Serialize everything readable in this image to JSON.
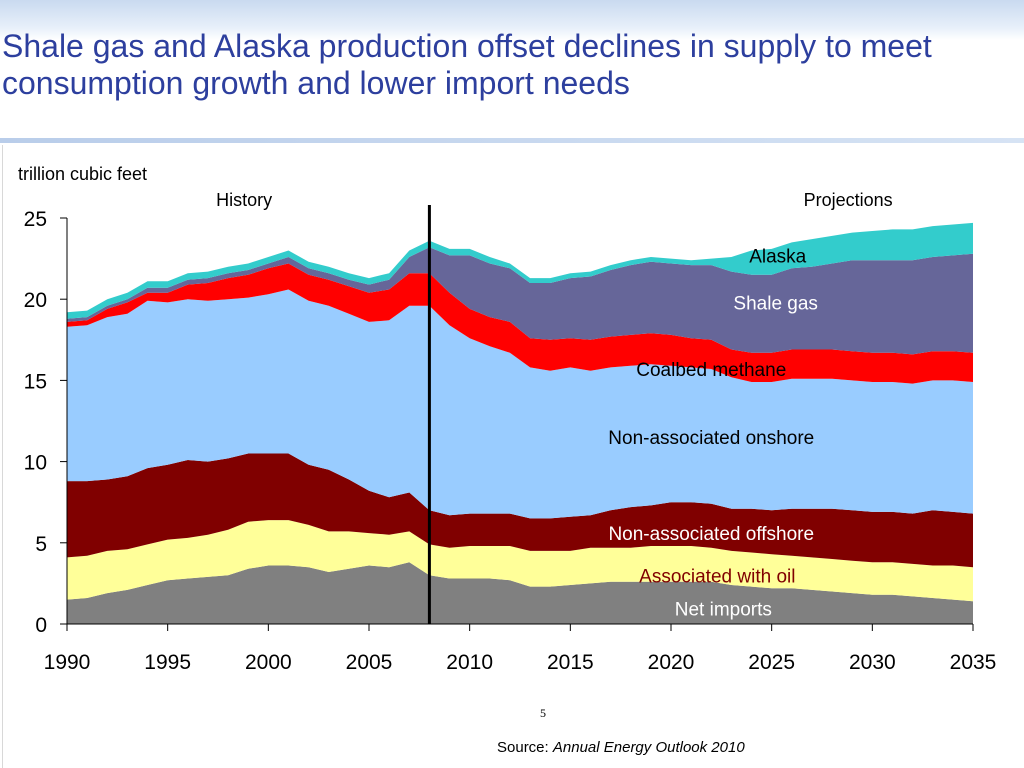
{
  "slide": {
    "title": "Shale gas and Alaska production offset declines in supply to meet consumption growth and lower import needs",
    "page_number": "5",
    "source_prefix": "Source:",
    "source_title": "Annual Energy Outlook 2010"
  },
  "colors": {
    "title": "#2d3f9e",
    "net_imports": "#808080",
    "associated": "#ffff99",
    "offshore": "#800000",
    "onshore": "#99ccff",
    "coalbed": "#ff0000",
    "shale": "#666699",
    "alaska": "#33cccc"
  },
  "chart_data": {
    "type": "area",
    "stacked": true,
    "ylabel": "trillion cubic feet",
    "ylim": [
      0,
      25
    ],
    "yticks": [
      0,
      5,
      10,
      15,
      20,
      25
    ],
    "xlim": [
      1990,
      2035
    ],
    "xticks": [
      1990,
      1995,
      2000,
      2005,
      2010,
      2015,
      2020,
      2025,
      2030,
      2035
    ],
    "divider_year": 2008,
    "period_labels": {
      "history": "History",
      "projections": "Projections"
    },
    "x": [
      1990,
      1991,
      1992,
      1993,
      1994,
      1995,
      1996,
      1997,
      1998,
      1999,
      2000,
      2001,
      2002,
      2003,
      2004,
      2005,
      2006,
      2007,
      2008,
      2009,
      2010,
      2011,
      2012,
      2013,
      2014,
      2015,
      2016,
      2017,
      2018,
      2019,
      2020,
      2021,
      2022,
      2023,
      2024,
      2025,
      2026,
      2027,
      2028,
      2029,
      2030,
      2031,
      2032,
      2033,
      2034,
      2035
    ],
    "series": [
      {
        "name": "Net imports",
        "color_key": "net_imports",
        "label_color": "#ffffff",
        "values": [
          1.5,
          1.6,
          1.9,
          2.1,
          2.4,
          2.7,
          2.8,
          2.9,
          3.0,
          3.4,
          3.6,
          3.6,
          3.5,
          3.2,
          3.4,
          3.6,
          3.5,
          3.8,
          3.0,
          2.8,
          2.8,
          2.8,
          2.7,
          2.3,
          2.3,
          2.4,
          2.5,
          2.6,
          2.6,
          2.6,
          2.6,
          2.6,
          2.6,
          2.4,
          2.3,
          2.2,
          2.2,
          2.1,
          2.0,
          1.9,
          1.8,
          1.8,
          1.7,
          1.6,
          1.5,
          1.4
        ]
      },
      {
        "name": "Associated with oil",
        "color_key": "associated",
        "label_color": "#800000",
        "values": [
          2.6,
          2.6,
          2.6,
          2.5,
          2.5,
          2.5,
          2.5,
          2.6,
          2.8,
          2.9,
          2.8,
          2.8,
          2.6,
          2.5,
          2.3,
          2.0,
          2.0,
          1.9,
          1.9,
          1.9,
          2.0,
          2.0,
          2.1,
          2.2,
          2.2,
          2.1,
          2.2,
          2.1,
          2.1,
          2.2,
          2.2,
          2.2,
          2.1,
          2.1,
          2.1,
          2.1,
          2.0,
          2.0,
          2.0,
          2.0,
          2.0,
          2.0,
          2.0,
          2.0,
          2.1,
          2.1
        ]
      },
      {
        "name": "Non-associated offshore",
        "color_key": "offshore",
        "label_color": "#ffffff",
        "values": [
          4.7,
          4.6,
          4.4,
          4.5,
          4.7,
          4.6,
          4.8,
          4.5,
          4.4,
          4.2,
          4.1,
          4.1,
          3.7,
          3.8,
          3.2,
          2.6,
          2.3,
          2.4,
          2.1,
          2.0,
          2.0,
          2.0,
          2.0,
          2.0,
          2.0,
          2.1,
          2.0,
          2.3,
          2.5,
          2.5,
          2.7,
          2.7,
          2.7,
          2.6,
          2.7,
          2.7,
          2.9,
          3.0,
          3.1,
          3.1,
          3.1,
          3.1,
          3.1,
          3.4,
          3.3,
          3.3
        ]
      },
      {
        "name": "Non-associated onshore",
        "color_key": "onshore",
        "label_color": "#000000",
        "values": [
          9.5,
          9.6,
          10.0,
          10.0,
          10.3,
          10.0,
          9.9,
          9.9,
          9.8,
          9.6,
          9.8,
          10.1,
          10.1,
          10.1,
          10.2,
          10.4,
          10.9,
          11.5,
          12.6,
          11.7,
          10.8,
          10.3,
          9.9,
          9.3,
          9.1,
          9.2,
          8.9,
          8.8,
          8.7,
          8.7,
          8.4,
          8.3,
          8.3,
          8.1,
          7.8,
          7.9,
          8.0,
          8.0,
          8.0,
          8.0,
          8.0,
          8.0,
          8.0,
          8.0,
          8.1,
          8.1
        ]
      },
      {
        "name": "Coalbed methane",
        "color_key": "coalbed",
        "label_color": "#000000",
        "values": [
          0.3,
          0.3,
          0.5,
          0.7,
          0.5,
          0.6,
          0.9,
          1.1,
          1.3,
          1.4,
          1.6,
          1.6,
          1.6,
          1.6,
          1.7,
          1.8,
          1.9,
          2.0,
          2.0,
          2.0,
          1.8,
          1.8,
          1.9,
          1.8,
          1.9,
          1.8,
          1.9,
          1.9,
          1.9,
          1.9,
          1.9,
          1.8,
          1.8,
          1.7,
          1.8,
          1.8,
          1.8,
          1.8,
          1.8,
          1.8,
          1.8,
          1.8,
          1.8,
          1.8,
          1.8,
          1.8
        ]
      },
      {
        "name": "Shale gas",
        "color_key": "shale",
        "label_color": "#ffffff",
        "values": [
          0.2,
          0.2,
          0.2,
          0.2,
          0.3,
          0.3,
          0.3,
          0.3,
          0.3,
          0.3,
          0.3,
          0.4,
          0.4,
          0.4,
          0.4,
          0.5,
          0.6,
          1.0,
          1.6,
          2.3,
          3.3,
          3.3,
          3.3,
          3.4,
          3.5,
          3.7,
          3.9,
          4.1,
          4.3,
          4.4,
          4.4,
          4.5,
          4.6,
          4.8,
          4.8,
          4.8,
          5.0,
          5.1,
          5.3,
          5.6,
          5.7,
          5.7,
          5.8,
          5.8,
          5.9,
          6.1
        ]
      },
      {
        "name": "Alaska",
        "color_key": "alaska",
        "label_color": "#000000",
        "values": [
          0.4,
          0.4,
          0.4,
          0.4,
          0.4,
          0.4,
          0.4,
          0.4,
          0.4,
          0.4,
          0.4,
          0.4,
          0.4,
          0.4,
          0.4,
          0.4,
          0.4,
          0.4,
          0.4,
          0.4,
          0.4,
          0.4,
          0.3,
          0.3,
          0.3,
          0.3,
          0.3,
          0.3,
          0.3,
          0.3,
          0.3,
          0.3,
          0.4,
          0.9,
          1.5,
          1.6,
          1.6,
          1.7,
          1.7,
          1.7,
          1.8,
          1.9,
          1.9,
          1.9,
          1.9,
          1.9
        ]
      }
    ],
    "label_positions": [
      {
        "series": "Net imports",
        "x": 2022.6,
        "y": 0.95
      },
      {
        "series": "Associated with oil",
        "x": 2022.3,
        "y": 3.0
      },
      {
        "series": "Non-associated offshore",
        "x": 2022.0,
        "y": 5.6
      },
      {
        "series": "Non-associated onshore",
        "x": 2022.0,
        "y": 11.5
      },
      {
        "series": "Coalbed methane",
        "x": 2022.0,
        "y": 15.7
      },
      {
        "series": "Shale gas",
        "x": 2025.2,
        "y": 19.8
      },
      {
        "series": "Alaska",
        "x": 2025.3,
        "y": 22.7
      }
    ]
  }
}
